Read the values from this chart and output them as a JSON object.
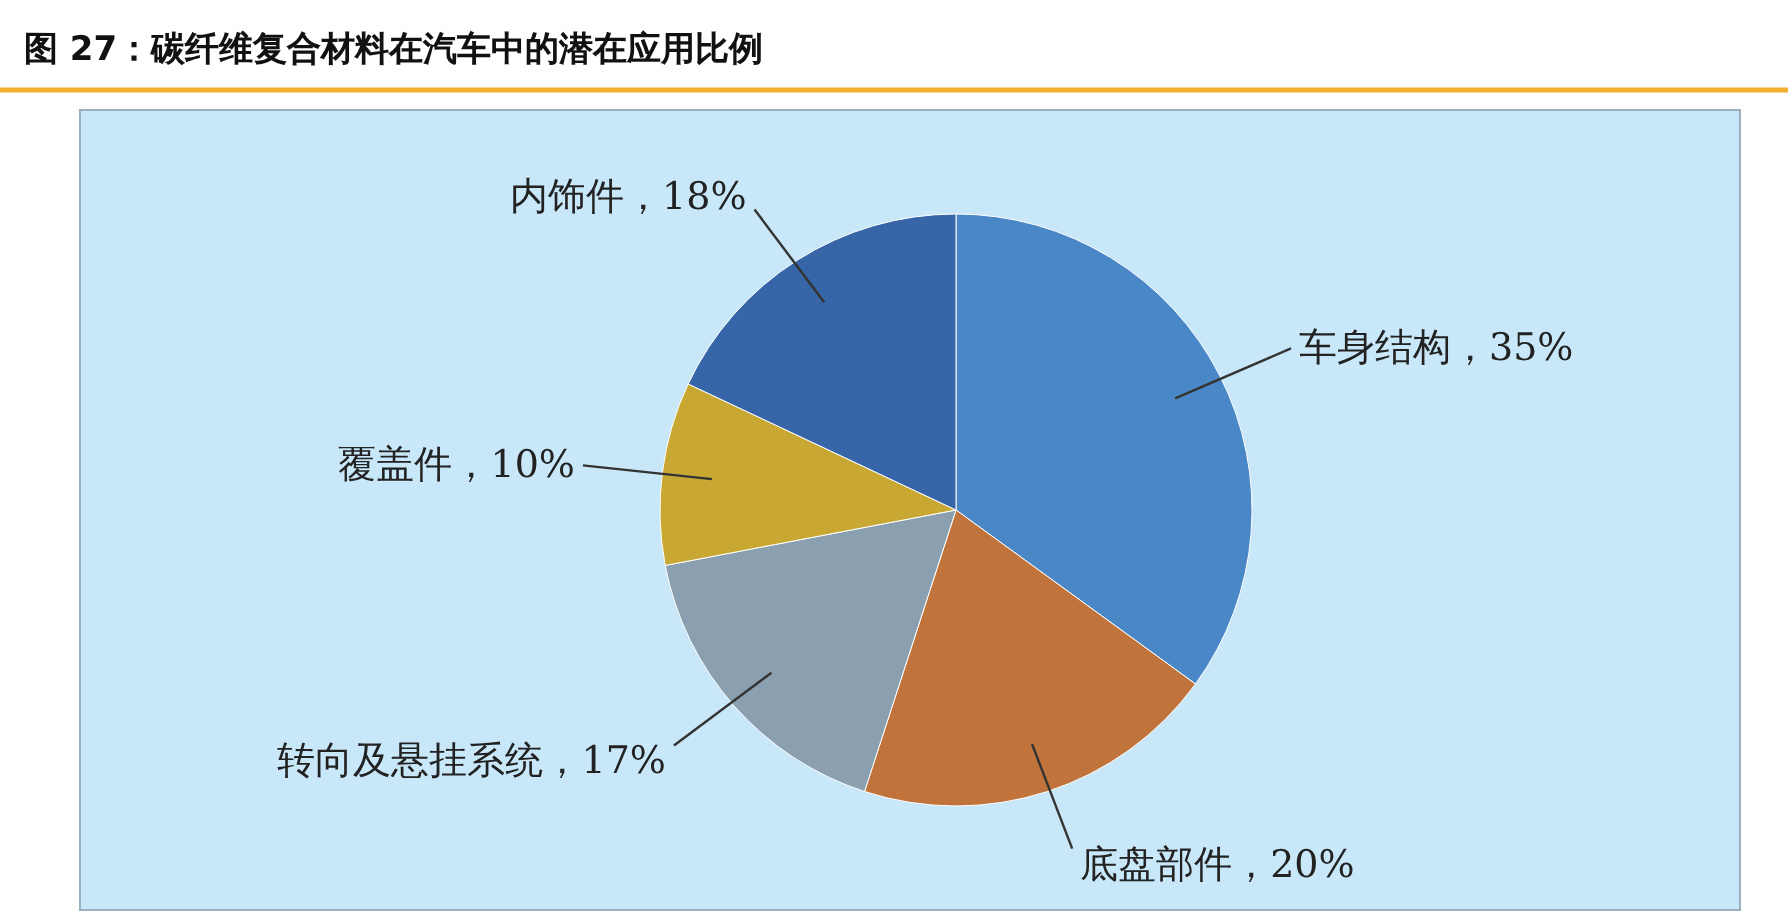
{
  "chart_data": {
    "type": "pie",
    "title": "图 27：碳纤维复合材料在汽车中的潜在应用比例",
    "categories": [
      "车身结构，35%",
      "底盘部件，20%",
      "转向及悬挂系统，17%",
      "覆盖件，10%",
      "内饰件，18%"
    ],
    "values": [
      35,
      20,
      17,
      10,
      18
    ],
    "colors": [
      "#4a87c6",
      "#c0743c",
      "#8a9fb0",
      "#c8a832",
      "#3666a8"
    ]
  }
}
